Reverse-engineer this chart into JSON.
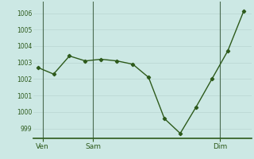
{
  "x": [
    0,
    1,
    2,
    3,
    4,
    5,
    6,
    7,
    8,
    9,
    10,
    11,
    12,
    13
  ],
  "y": [
    1002.7,
    1002.3,
    1003.4,
    1003.1,
    1003.2,
    1003.1,
    1002.9,
    1002.1,
    999.6,
    998.7,
    1000.3,
    1002.0,
    1003.7,
    1006.1
  ],
  "xtick_positions": [
    0.3,
    3.5,
    11.5
  ],
  "xtick_labels": [
    "Ven",
    "Sam",
    "Dim"
  ],
  "vline_positions": [
    0.3,
    3.5,
    11.5
  ],
  "ytick_values": [
    999,
    1000,
    1001,
    1002,
    1003,
    1004,
    1005,
    1006
  ],
  "ylim": [
    998.4,
    1006.7
  ],
  "xlim": [
    -0.3,
    13.5
  ],
  "line_color": "#2d5a1b",
  "marker": "D",
  "marker_size": 2.2,
  "bg_color": "#cce8e4",
  "grid_color": "#b8d4d0",
  "vline_color": "#4a6a50",
  "bottom_spine_color": "#2d5a1b",
  "line_width": 1.0,
  "tick_label_color": "#2d5a1b",
  "ytick_fontsize": 5.5,
  "xtick_fontsize": 6.5
}
